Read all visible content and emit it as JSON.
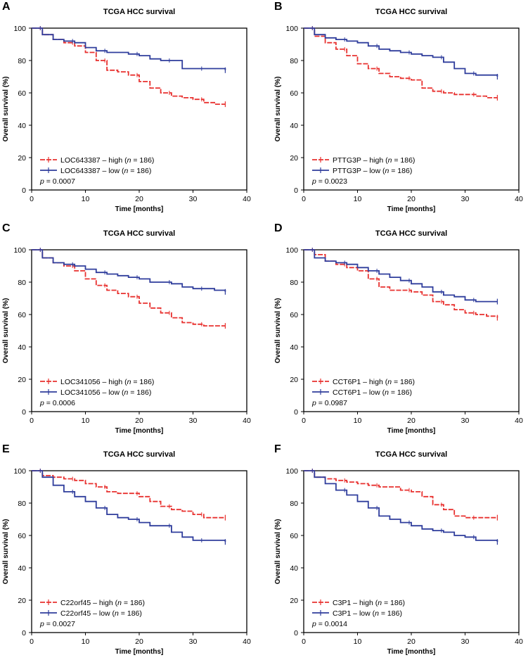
{
  "chart_data": [
    {
      "panel": "A",
      "type": "line",
      "title": "TCGA HCC survival",
      "xlabel": "Time [months]",
      "ylabel": "Overall survival (%)",
      "xlim": [
        0,
        40
      ],
      "ylim": [
        0,
        100
      ],
      "xticks": [
        "0",
        "10",
        "20",
        "30",
        "40"
      ],
      "yticks": [
        "0",
        "20",
        "40",
        "60",
        "80",
        "100"
      ],
      "series": [
        {
          "name": "high",
          "label_main": "LOC643387 – high (",
          "label_n": "n",
          "label_tail": " = 186)",
          "color": "#e8312f",
          "dashed": true,
          "x": [
            0,
            2,
            4,
            6,
            8,
            10,
            12,
            14,
            16,
            18,
            20,
            22,
            24,
            26,
            28,
            30,
            32,
            34,
            36
          ],
          "y": [
            100,
            96,
            93,
            91,
            89,
            85,
            80,
            74,
            73,
            71,
            67,
            63,
            60,
            58,
            57,
            56,
            54,
            53,
            53
          ]
        },
        {
          "name": "low",
          "label_main": "LOC643387 – low (",
          "label_n": "n",
          "label_tail": " = 186)",
          "color": "#2f3d9c",
          "dashed": false,
          "x": [
            0,
            2,
            4,
            6,
            8,
            10,
            12,
            14,
            16,
            18,
            20,
            22,
            24,
            26,
            28,
            30,
            32,
            34,
            36
          ],
          "y": [
            100,
            96,
            93,
            92,
            91,
            88,
            86,
            85,
            85,
            84,
            83,
            81,
            80,
            80,
            75,
            75,
            75,
            75,
            74
          ]
        }
      ],
      "p_label": "p",
      "p_value": " = 0.0007"
    },
    {
      "panel": "B",
      "type": "line",
      "title": "TCGA HCC survival",
      "xlabel": "Time [months]",
      "ylabel": "Overall survival (%)",
      "xlim": [
        0,
        40
      ],
      "ylim": [
        0,
        100
      ],
      "xticks": [
        "0",
        "10",
        "20",
        "30",
        "40"
      ],
      "yticks": [
        "0",
        "20",
        "40",
        "60",
        "80",
        "100"
      ],
      "series": [
        {
          "name": "high",
          "label_main": "PTTG3P – high (",
          "label_n": "n",
          "label_tail": " = 186)",
          "color": "#e8312f",
          "dashed": true,
          "x": [
            0,
            2,
            4,
            6,
            8,
            10,
            12,
            14,
            16,
            18,
            20,
            22,
            24,
            26,
            28,
            30,
            32,
            34,
            36
          ],
          "y": [
            100,
            95,
            91,
            87,
            83,
            78,
            75,
            72,
            70,
            69,
            68,
            63,
            61,
            60,
            59,
            59,
            58,
            57,
            57
          ]
        },
        {
          "name": "low",
          "label_main": "PTTG3P – low (",
          "label_n": "n",
          "label_tail": " = 186)",
          "color": "#2f3d9c",
          "dashed": false,
          "x": [
            0,
            2,
            4,
            6,
            8,
            10,
            12,
            14,
            16,
            18,
            20,
            22,
            24,
            26,
            28,
            30,
            32,
            34,
            36
          ],
          "y": [
            100,
            96,
            94,
            93,
            92,
            91,
            89,
            87,
            86,
            85,
            84,
            83,
            82,
            79,
            75,
            72,
            71,
            71,
            70
          ]
        }
      ],
      "p_label": "p",
      "p_value": " = 0.0023"
    },
    {
      "panel": "C",
      "type": "line",
      "title": "TCGA HCC survival",
      "xlabel": "Time [months]",
      "ylabel": "Overall survival (%)",
      "xlim": [
        0,
        40
      ],
      "ylim": [
        0,
        100
      ],
      "xticks": [
        "0",
        "10",
        "20",
        "30",
        "40"
      ],
      "yticks": [
        "0",
        "20",
        "40",
        "60",
        "80",
        "100"
      ],
      "series": [
        {
          "name": "high",
          "label_main": "LOC341056 – high (",
          "label_n": "n",
          "label_tail": " = 186)",
          "color": "#e8312f",
          "dashed": true,
          "x": [
            0,
            2,
            4,
            6,
            8,
            10,
            12,
            14,
            16,
            18,
            20,
            22,
            24,
            26,
            28,
            30,
            32,
            34,
            36
          ],
          "y": [
            100,
            95,
            92,
            90,
            87,
            82,
            78,
            75,
            73,
            71,
            67,
            64,
            61,
            58,
            55,
            54,
            53,
            53,
            53
          ]
        },
        {
          "name": "low",
          "label_main": "LOC341056 – low (",
          "label_n": "n",
          "label_tail": " = 186)",
          "color": "#2f3d9c",
          "dashed": false,
          "x": [
            0,
            2,
            4,
            6,
            8,
            10,
            12,
            14,
            16,
            18,
            20,
            22,
            24,
            26,
            28,
            30,
            32,
            34,
            36
          ],
          "y": [
            100,
            95,
            92,
            91,
            90,
            88,
            86,
            85,
            84,
            83,
            82,
            80,
            80,
            79,
            77,
            76,
            76,
            75,
            74
          ]
        }
      ],
      "p_label": "p",
      "p_value": " = 0.0006"
    },
    {
      "panel": "D",
      "type": "line",
      "title": "TCGA HCC survival",
      "xlabel": "Time [months]",
      "ylabel": "Overall survival (%)",
      "xlim": [
        0,
        40
      ],
      "ylim": [
        0,
        100
      ],
      "xticks": [
        "0",
        "10",
        "20",
        "30",
        "40"
      ],
      "yticks": [
        "0",
        "20",
        "40",
        "60",
        "80",
        "100"
      ],
      "series": [
        {
          "name": "high",
          "label_main": "CCT6P1 – high (",
          "label_n": "n",
          "label_tail": " = 186)",
          "color": "#e8312f",
          "dashed": true,
          "x": [
            0,
            2,
            4,
            6,
            8,
            10,
            12,
            14,
            16,
            18,
            20,
            22,
            24,
            26,
            28,
            30,
            32,
            34,
            36
          ],
          "y": [
            100,
            97,
            93,
            91,
            89,
            87,
            82,
            77,
            75,
            75,
            74,
            72,
            68,
            66,
            63,
            61,
            60,
            59,
            58
          ]
        },
        {
          "name": "low",
          "label_main": "CCT6P1 – low (",
          "label_n": "n",
          "label_tail": " = 186)",
          "color": "#2f3d9c",
          "dashed": false,
          "x": [
            0,
            2,
            4,
            6,
            8,
            10,
            12,
            14,
            16,
            18,
            20,
            22,
            24,
            26,
            28,
            30,
            32,
            34,
            36
          ],
          "y": [
            100,
            95,
            93,
            92,
            91,
            89,
            87,
            85,
            83,
            81,
            79,
            77,
            74,
            72,
            71,
            69,
            68,
            68,
            68
          ]
        }
      ],
      "p_label": "p",
      "p_value": " = 0.0987"
    },
    {
      "panel": "E",
      "type": "line",
      "title": "TCGA HCC survival",
      "xlabel": "Time [months]",
      "ylabel": "Overall survival (%)",
      "xlim": [
        0,
        40
      ],
      "ylim": [
        0,
        100
      ],
      "xticks": [
        "0",
        "10",
        "20",
        "30",
        "40"
      ],
      "yticks": [
        "0",
        "20",
        "40",
        "60",
        "80",
        "100"
      ],
      "series": [
        {
          "name": "high",
          "label_main": "C22orf45 – high (",
          "label_n": "n",
          "label_tail": " = 186)",
          "color": "#e8312f",
          "dashed": true,
          "x": [
            0,
            2,
            4,
            6,
            8,
            10,
            12,
            14,
            16,
            18,
            20,
            22,
            24,
            26,
            28,
            30,
            32,
            34,
            36
          ],
          "y": [
            100,
            97,
            96,
            95,
            94,
            92,
            90,
            87,
            86,
            86,
            84,
            81,
            78,
            76,
            75,
            73,
            71,
            71,
            71
          ]
        },
        {
          "name": "low",
          "label_main": "C22orf45 – low (",
          "label_n": "n",
          "label_tail": " = 186)",
          "color": "#2f3d9c",
          "dashed": false,
          "x": [
            0,
            2,
            4,
            6,
            8,
            10,
            12,
            14,
            16,
            18,
            20,
            22,
            24,
            26,
            28,
            30,
            32,
            34,
            36
          ],
          "y": [
            100,
            96,
            91,
            87,
            84,
            81,
            77,
            73,
            71,
            70,
            68,
            66,
            66,
            62,
            59,
            57,
            57,
            57,
            56
          ]
        }
      ],
      "p_label": "p",
      "p_value": " = 0.0027"
    },
    {
      "panel": "F",
      "type": "line",
      "title": "TCGA HCC survival",
      "xlabel": "Time [months]",
      "ylabel": "Overall survival (%)",
      "xlim": [
        0,
        40
      ],
      "ylim": [
        0,
        100
      ],
      "xticks": [
        "0",
        "10",
        "20",
        "30",
        "40"
      ],
      "yticks": [
        "0",
        "20",
        "40",
        "60",
        "80",
        "100"
      ],
      "series": [
        {
          "name": "high",
          "label_main": "C3P1 – high (",
          "label_n": "n",
          "label_tail": " = 186)",
          "color": "#e8312f",
          "dashed": true,
          "x": [
            0,
            2,
            4,
            6,
            8,
            10,
            12,
            14,
            16,
            18,
            20,
            22,
            24,
            26,
            28,
            30,
            32,
            34,
            36
          ],
          "y": [
            100,
            96,
            95,
            94,
            93,
            92,
            91,
            90,
            90,
            88,
            87,
            84,
            79,
            76,
            72,
            71,
            71,
            71,
            71
          ]
        },
        {
          "name": "low",
          "label_main": "C3P1 – low (",
          "label_n": "n",
          "label_tail": " = 186)",
          "color": "#2f3d9c",
          "dashed": false,
          "x": [
            0,
            2,
            4,
            6,
            8,
            10,
            12,
            14,
            16,
            18,
            20,
            22,
            24,
            26,
            28,
            30,
            32,
            34,
            36
          ],
          "y": [
            100,
            96,
            92,
            88,
            85,
            81,
            77,
            72,
            70,
            68,
            66,
            64,
            63,
            62,
            60,
            59,
            57,
            57,
            56
          ]
        }
      ],
      "p_label": "p",
      "p_value": " = 0.0014"
    }
  ]
}
